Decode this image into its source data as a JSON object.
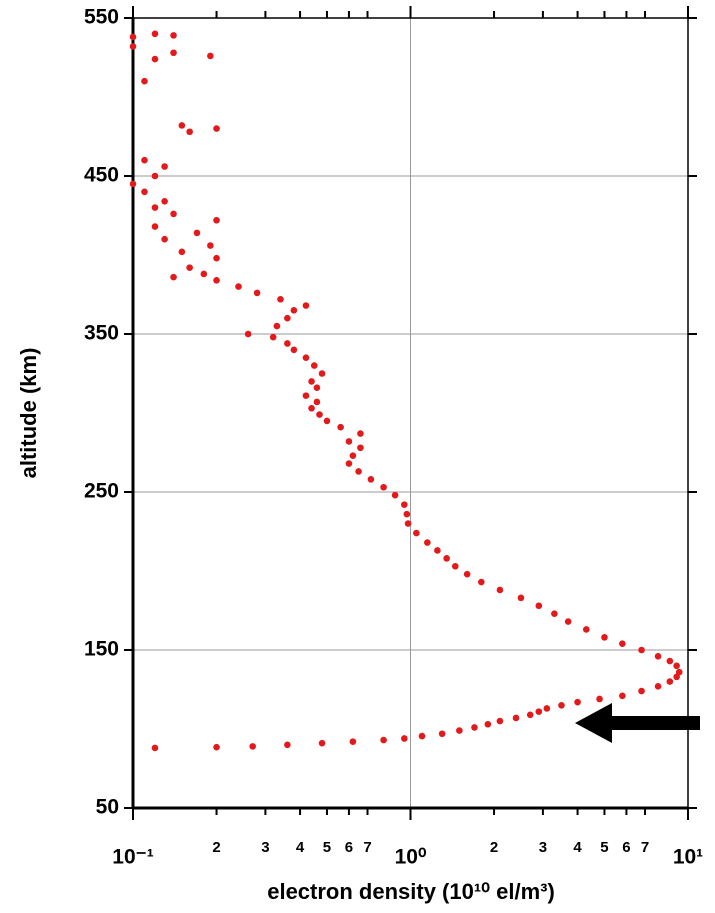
{
  "chart_data": {
    "type": "scatter",
    "x_label": "electron density (10¹⁰ el/m³)",
    "y_label": "altitude (km)",
    "xscale": "log",
    "xlim": [
      0.1,
      10
    ],
    "ylim": [
      50,
      550
    ],
    "xticks": [
      {
        "value": 0.1,
        "label": "10⁻¹"
      },
      {
        "value": 0.2,
        "label": "2"
      },
      {
        "value": 0.3,
        "label": "3"
      },
      {
        "value": 0.4,
        "label": "4"
      },
      {
        "value": 0.5,
        "label": "5"
      },
      {
        "value": 0.6,
        "label": "6"
      },
      {
        "value": 0.7,
        "label": "7"
      },
      {
        "value": 1,
        "label": "10⁰"
      },
      2,
      3,
      4,
      5,
      6,
      7,
      {
        "value": 10,
        "label": "10¹"
      }
    ],
    "yticks": [
      50,
      150,
      250,
      350,
      450,
      550
    ],
    "grid": true,
    "color": "#e31a1c",
    "x": [
      0.12,
      0.2,
      0.27,
      0.36,
      0.48,
      0.62,
      0.8,
      0.95,
      1.1,
      1.3,
      1.5,
      1.7,
      1.9,
      2.1,
      2.4,
      2.7,
      2.9,
      3.1,
      3.5,
      4.0,
      4.8,
      5.8,
      6.8,
      7.8,
      8.6,
      9.1,
      9.3,
      9.1,
      8.6,
      7.8,
      6.8,
      5.8,
      5.0,
      4.3,
      3.7,
      3.3,
      2.9,
      2.5,
      2.1,
      1.8,
      1.6,
      1.45,
      1.35,
      1.25,
      1.15,
      1.05,
      0.98,
      0.97,
      0.95,
      0.88,
      0.8,
      0.72,
      0.65,
      0.6,
      0.62,
      0.66,
      0.6,
      0.66,
      0.56,
      0.5,
      0.47,
      0.44,
      0.46,
      0.42,
      0.46,
      0.44,
      0.48,
      0.45,
      0.42,
      0.38,
      0.36,
      0.32,
      0.26,
      0.33,
      0.36,
      0.38,
      0.42,
      0.34,
      0.28,
      0.24,
      0.2,
      0.18,
      0.14,
      0.16,
      0.2,
      0.15,
      0.19,
      0.13,
      0.17,
      0.12,
      0.2,
      0.14,
      0.12,
      0.13,
      0.11,
      0.1,
      0.12,
      0.13,
      0.11,
      0.16,
      0.2,
      0.15,
      0.11,
      0.12,
      0.14,
      0.19,
      0.1,
      0.12,
      0.14,
      0.1
    ],
    "values": [
      88,
      88.5,
      89,
      90,
      91,
      92,
      93,
      94,
      95.5,
      97,
      99,
      101,
      103,
      105,
      107,
      109,
      111,
      113,
      115,
      117,
      119,
      121,
      124,
      127,
      130,
      133,
      136,
      140,
      143,
      146,
      150,
      154,
      158,
      163,
      168,
      173,
      178,
      183,
      188,
      193,
      198,
      203,
      208,
      213,
      218,
      224,
      230,
      236,
      242,
      248,
      253,
      258,
      263,
      268,
      273,
      278,
      282,
      287,
      291,
      295,
      299,
      303,
      307,
      311,
      316,
      320,
      325,
      330,
      335,
      340,
      344,
      348,
      350,
      355,
      360,
      365,
      368,
      372,
      376,
      380,
      384,
      388,
      386,
      392,
      398,
      402,
      406,
      410,
      414,
      418,
      422,
      426,
      430,
      434,
      440,
      445,
      450,
      456,
      460,
      478,
      480,
      482,
      510,
      524,
      528,
      526,
      532,
      540,
      539,
      538
    ]
  }
}
